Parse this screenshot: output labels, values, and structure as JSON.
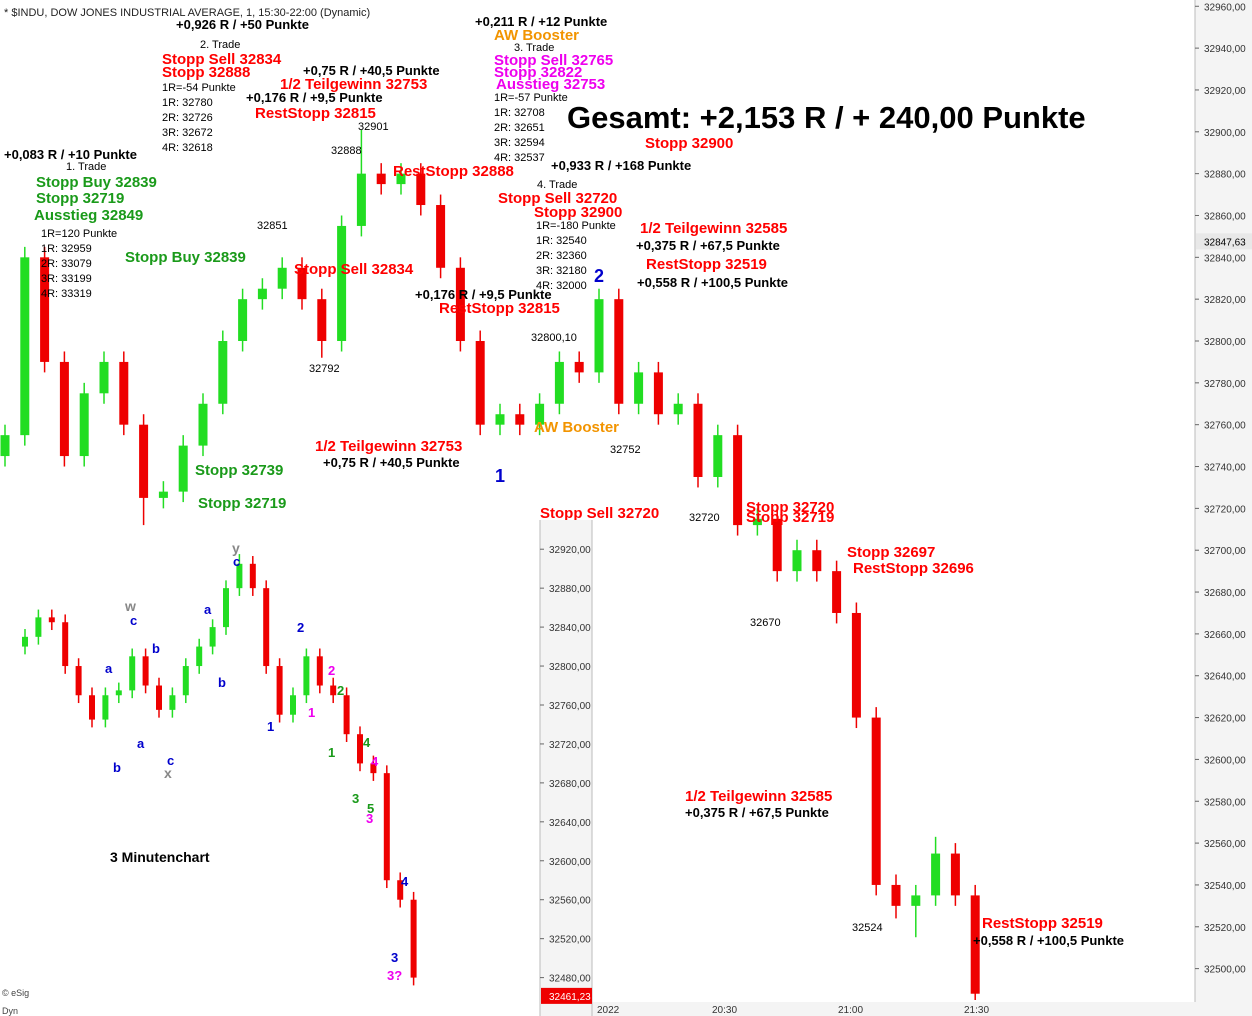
{
  "chart_data": [
    {
      "type": "candlestick",
      "title": "* $INDU, DOW JONES INDUSTRIAL AVERAGE, 1, 15:30-22:00 (Dynamic)",
      "up_color": "#22dd22",
      "down_color": "#ee0000",
      "open": [
        32745,
        32755,
        32840,
        32790,
        32745,
        32775,
        32790,
        32760,
        32725,
        32728,
        32750,
        32770,
        32800,
        32820,
        32825,
        32835,
        32820,
        32800,
        32855,
        32880,
        32875,
        32880,
        32865,
        32835,
        32800,
        32760,
        32765,
        32760,
        32770,
        32790,
        32785,
        32820,
        32770,
        32785,
        32765,
        32770,
        32735,
        32755,
        32712,
        32715,
        32690,
        32700,
        32690,
        32670,
        32620,
        32540,
        32530,
        32535,
        32555,
        32535
      ],
      "high": [
        32760,
        32845,
        32845,
        32795,
        32780,
        32795,
        32795,
        32765,
        32733,
        32755,
        32775,
        32805,
        32825,
        32830,
        32840,
        32840,
        32825,
        32860,
        32901,
        32885,
        32885,
        32885,
        32870,
        32840,
        32805,
        32770,
        32770,
        32775,
        32795,
        32795,
        32825,
        32825,
        32790,
        32790,
        32775,
        32775,
        32760,
        32760,
        32720,
        32720,
        32705,
        32705,
        32695,
        32675,
        32625,
        32545,
        32540,
        32563,
        32560,
        32540
      ],
      "low": [
        32740,
        32750,
        32785,
        32740,
        32740,
        32770,
        32755,
        32712,
        32720,
        32723,
        32745,
        32765,
        32795,
        32815,
        32820,
        32815,
        32792,
        32795,
        32850,
        32870,
        32870,
        32860,
        32830,
        32795,
        32755,
        32755,
        32755,
        32755,
        32765,
        32780,
        32780,
        32765,
        32765,
        32760,
        32760,
        32730,
        32730,
        32707,
        32707,
        32685,
        32685,
        32685,
        32665,
        32615,
        32535,
        32524,
        32515,
        32530,
        32530,
        32485
      ],
      "close": [
        32755,
        32840,
        32790,
        32745,
        32775,
        32790,
        32760,
        32725,
        32728,
        32750,
        32770,
        32800,
        32820,
        32825,
        32835,
        32820,
        32800,
        32855,
        32880,
        32875,
        32880,
        32865,
        32835,
        32800,
        32760,
        32765,
        32760,
        32770,
        32790,
        32785,
        32820,
        32770,
        32785,
        32765,
        32770,
        32735,
        32755,
        32712,
        32715,
        32690,
        32700,
        32690,
        32670,
        32620,
        32540,
        32530,
        32535,
        32555,
        32535,
        32488
      ],
      "ylim": [
        32485,
        32963
      ],
      "yticks": [
        {
          "value": 32960,
          "label": "32960,00"
        },
        {
          "value": 32940,
          "label": "32940,00"
        },
        {
          "value": 32920,
          "label": "32920,00"
        },
        {
          "value": 32900,
          "label": "32900,00"
        },
        {
          "value": 32880,
          "label": "32880,00"
        },
        {
          "value": 32860,
          "label": "32860,00"
        },
        {
          "value": 32840,
          "label": "32840,00"
        },
        {
          "value": 32820,
          "label": "32820,00"
        },
        {
          "value": 32800,
          "label": "32800,00"
        },
        {
          "value": 32780,
          "label": "32780,00"
        },
        {
          "value": 32760,
          "label": "32760,00"
        },
        {
          "value": 32740,
          "label": "32740,00"
        },
        {
          "value": 32720,
          "label": "32720,00"
        },
        {
          "value": 32700,
          "label": "32700,00"
        },
        {
          "value": 32680,
          "label": "32680,00"
        },
        {
          "value": 32660,
          "label": "32660,00"
        },
        {
          "value": 32640,
          "label": "32640,00"
        },
        {
          "value": 32620,
          "label": "32620,00"
        },
        {
          "value": 32600,
          "label": "32600,00"
        },
        {
          "value": 32580,
          "label": "32580,00"
        },
        {
          "value": 32560,
          "label": "32560,00"
        },
        {
          "value": 32540,
          "label": "32540,00"
        },
        {
          "value": 32520,
          "label": "32520,00"
        },
        {
          "value": 32500,
          "label": "32500,00"
        }
      ],
      "last_value": {
        "value": 32847.63,
        "label": "32847,63"
      },
      "time_labels": [
        "2022",
        "20:30",
        "21:00",
        "21:30"
      ],
      "annotations": [
        {
          "text": "+0,926 R / +50 Punkte",
          "color": "#000000"
        },
        {
          "text": "2. Trade",
          "color": "#000000"
        },
        {
          "text": "Stopp Sell 32834",
          "color": "#ff0000"
        },
        {
          "text": "Stopp 32888",
          "color": "#ff0000"
        },
        {
          "text": "+0,75 R / +40,5 Punkte",
          "color": "#000000"
        },
        {
          "text": "1/2 Teilgewinn 32753",
          "color": "#ff0000"
        },
        {
          "text": "1R=-54 Punkte",
          "color": "#000000"
        },
        {
          "text": "+0,176 R / +9,5 Punkte",
          "color": "#000000"
        },
        {
          "text": "1R: 32780",
          "color": "#000000"
        },
        {
          "text": "RestStopp 32815",
          "color": "#ff0000"
        },
        {
          "text": "2R: 32726",
          "color": "#000000"
        },
        {
          "text": "3R: 32672",
          "color": "#000000"
        },
        {
          "text": "4R: 32618",
          "color": "#000000"
        },
        {
          "text": "32901",
          "color": "#000000"
        },
        {
          "text": "32888",
          "color": "#000000"
        },
        {
          "text": "+0,083 R / +10 Punkte",
          "color": "#000000"
        },
        {
          "text": "1. Trade",
          "color": "#000000"
        },
        {
          "text": "Stopp Buy 32839",
          "color": "#1a9a1a"
        },
        {
          "text": "Stopp 32719",
          "color": "#1a9a1a"
        },
        {
          "text": "Ausstieg 32849",
          "color": "#1a9a1a"
        },
        {
          "text": "1R=120 Punkte",
          "color": "#000000"
        },
        {
          "text": "1R: 32959",
          "color": "#000000"
        },
        {
          "text": "2R: 33079",
          "color": "#000000"
        },
        {
          "text": "3R: 33199",
          "color": "#000000"
        },
        {
          "text": "4R: 33319",
          "color": "#000000"
        },
        {
          "text": "32851",
          "color": "#000000"
        },
        {
          "text": "Stopp Buy 32839",
          "color": "#1a9a1a"
        },
        {
          "text": "Stopp Sell 32834",
          "color": "#ff0000"
        },
        {
          "text": "32792",
          "color": "#000000"
        },
        {
          "text": "+0,211 R / +12 Punkte",
          "color": "#000000"
        },
        {
          "text": "AW Booster",
          "color": "#f29400"
        },
        {
          "text": "3. Trade",
          "color": "#000000"
        },
        {
          "text": "Stopp Sell 32765",
          "color": "#ee00ee"
        },
        {
          "text": "Stopp 32822",
          "color": "#ee00ee"
        },
        {
          "text": "Ausstieg 32753",
          "color": "#ee00ee"
        },
        {
          "text": "1R=-57 Punkte",
          "color": "#000000"
        },
        {
          "text": "1R: 32708",
          "color": "#000000"
        },
        {
          "text": "2R: 32651",
          "color": "#000000"
        },
        {
          "text": "3R: 32594",
          "color": "#000000"
        },
        {
          "text": "4R: 32537",
          "color": "#000000"
        },
        {
          "text": "Gesamt: +2,153 R / + 240,00 Punkte",
          "color": "#000000"
        },
        {
          "text": "Stopp 32900",
          "color": "#ff0000"
        },
        {
          "text": "+0,933 R / +168 Punkte",
          "color": "#000000"
        },
        {
          "text": "RestStopp 32888",
          "color": "#ff0000"
        },
        {
          "text": "4. Trade",
          "color": "#000000"
        },
        {
          "text": "Stopp Sell 32720",
          "color": "#ff0000"
        },
        {
          "text": "Stopp 32900",
          "color": "#ff0000"
        },
        {
          "text": "1R=-180 Punkte",
          "color": "#000000"
        },
        {
          "text": "1R: 32540",
          "color": "#000000"
        },
        {
          "text": "2R: 32360",
          "color": "#000000"
        },
        {
          "text": "3R: 32180",
          "color": "#000000"
        },
        {
          "text": "4R: 32000",
          "color": "#000000"
        },
        {
          "text": "1/2 Teilgewinn 32585",
          "color": "#ff0000"
        },
        {
          "text": "+0,375 R / +67,5 Punkte",
          "color": "#000000"
        },
        {
          "text": "RestStopp 32519",
          "color": "#ff0000"
        },
        {
          "text": "+0,558 R / +100,5 Punkte",
          "color": "#000000"
        },
        {
          "text": "2",
          "color": "#0000cc"
        },
        {
          "text": "+0,176 R / +9,5 Punkte",
          "color": "#000000"
        },
        {
          "text": "RestStopp 32815",
          "color": "#ff0000"
        },
        {
          "text": "32800,10",
          "color": "#000000"
        },
        {
          "text": "AW Booster",
          "color": "#f29400"
        },
        {
          "text": "1/2 Teilgewinn 32753",
          "color": "#ff0000"
        },
        {
          "text": "+0,75 R / +40,5 Punkte",
          "color": "#000000"
        },
        {
          "text": "1",
          "color": "#0000cc"
        },
        {
          "text": "32752",
          "color": "#000000"
        },
        {
          "text": "Stopp 32739",
          "color": "#1a9a1a"
        },
        {
          "text": "Stopp 32719",
          "color": "#1a9a1a"
        },
        {
          "text": "Stopp Sell 32720",
          "color": "#ff0000"
        },
        {
          "text": "32720",
          "color": "#000000"
        },
        {
          "text": "Stopp 32720",
          "color": "#ff0000"
        },
        {
          "text": "Stopp 32719",
          "color": "#ff0000"
        },
        {
          "text": "Stopp 32697",
          "color": "#ff0000"
        },
        {
          "text": "RestStopp 32696",
          "color": "#ff0000"
        },
        {
          "text": "32670",
          "color": "#000000"
        },
        {
          "text": "1/2 Teilgewinn 32585",
          "color": "#ff0000"
        },
        {
          "text": "+0,375 R / +67,5 Punkte",
          "color": "#000000"
        },
        {
          "text": "32524",
          "color": "#000000"
        },
        {
          "text": "RestStopp 32519",
          "color": "#ff0000"
        },
        {
          "text": "+0,558 R / +100,5 Punkte",
          "color": "#000000"
        }
      ]
    },
    {
      "type": "candlestick",
      "title": "3 Minutenchart",
      "up_color": "#22dd22",
      "down_color": "#ee0000",
      "open": [
        32820,
        32830,
        32850,
        32845,
        32800,
        32770,
        32745,
        32770,
        32775,
        32810,
        32780,
        32755,
        32770,
        32800,
        32820,
        32840,
        32880,
        32905,
        32880,
        32800,
        32750,
        32770,
        32810,
        32780,
        32770,
        32730,
        32700,
        32690,
        32580,
        32560
      ],
      "high": [
        32838,
        32858,
        32858,
        32853,
        32808,
        32778,
        32778,
        32783,
        32818,
        32818,
        32788,
        32778,
        32808,
        32828,
        32848,
        32888,
        32915,
        32913,
        32888,
        32808,
        32778,
        32818,
        32818,
        32788,
        32778,
        32738,
        32708,
        32698,
        32588,
        32568
      ],
      "low": [
        32812,
        32822,
        32837,
        32792,
        32762,
        32737,
        32737,
        32762,
        32767,
        32772,
        32747,
        32747,
        32762,
        32792,
        32812,
        32832,
        32872,
        32872,
        32792,
        32742,
        32742,
        32762,
        32772,
        32762,
        32722,
        32692,
        32682,
        32572,
        32552,
        32472
      ],
      "close": [
        32830,
        32850,
        32845,
        32800,
        32770,
        32745,
        32770,
        32775,
        32810,
        32780,
        32755,
        32770,
        32800,
        32820,
        32840,
        32880,
        32905,
        32880,
        32800,
        32750,
        32770,
        32810,
        32780,
        32770,
        32730,
        32700,
        32690,
        32580,
        32560,
        32480
      ],
      "ylim": [
        32457,
        32950
      ],
      "yticks": [
        {
          "value": 32920,
          "label": "32920,00"
        },
        {
          "value": 32880,
          "label": "32880,00"
        },
        {
          "value": 32840,
          "label": "32840,00"
        },
        {
          "value": 32800,
          "label": "32800,00"
        },
        {
          "value": 32760,
          "label": "32760,00"
        },
        {
          "value": 32720,
          "label": "32720,00"
        },
        {
          "value": 32680,
          "label": "32680,00"
        },
        {
          "value": 32640,
          "label": "32640,00"
        },
        {
          "value": 32600,
          "label": "32600,00"
        },
        {
          "value": 32560,
          "label": "32560,00"
        },
        {
          "value": 32520,
          "label": "32520,00"
        },
        {
          "value": 32480,
          "label": "32480,00"
        }
      ],
      "last_value": {
        "value": 32461.23,
        "label": "32461,23"
      },
      "footer": [
        "© eSig",
        "Dyn"
      ],
      "annotations": [
        {
          "text": "w",
          "color": "#888888"
        },
        {
          "text": "c",
          "color": "#0000cc"
        },
        {
          "text": "a",
          "color": "#0000cc"
        },
        {
          "text": "b",
          "color": "#0000cc"
        },
        {
          "text": "a",
          "color": "#0000cc"
        },
        {
          "text": "b",
          "color": "#0000cc"
        },
        {
          "text": "c",
          "color": "#0000cc"
        },
        {
          "text": "x",
          "color": "#888888"
        },
        {
          "text": "a",
          "color": "#0000cc"
        },
        {
          "text": "b",
          "color": "#0000cc"
        },
        {
          "text": "y",
          "color": "#888888"
        },
        {
          "text": "c",
          "color": "#0000cc"
        },
        {
          "text": "2",
          "color": "#0000cc"
        },
        {
          "text": "1",
          "color": "#0000cc"
        },
        {
          "text": "1",
          "color": "#ee00ee"
        },
        {
          "text": "2",
          "color": "#ee00ee"
        },
        {
          "text": "2",
          "color": "#1a9a1a"
        },
        {
          "text": "1",
          "color": "#1a9a1a"
        },
        {
          "text": "4",
          "color": "#1a9a1a"
        },
        {
          "text": "4",
          "color": "#ee00ee"
        },
        {
          "text": "3",
          "color": "#1a9a1a"
        },
        {
          "text": "5",
          "color": "#1a9a1a"
        },
        {
          "text": "3",
          "color": "#ee00ee"
        },
        {
          "text": "4",
          "color": "#0000cc"
        },
        {
          "text": "3",
          "color": "#0000cc"
        },
        {
          "text": "3?",
          "color": "#ee00ee"
        }
      ]
    }
  ]
}
